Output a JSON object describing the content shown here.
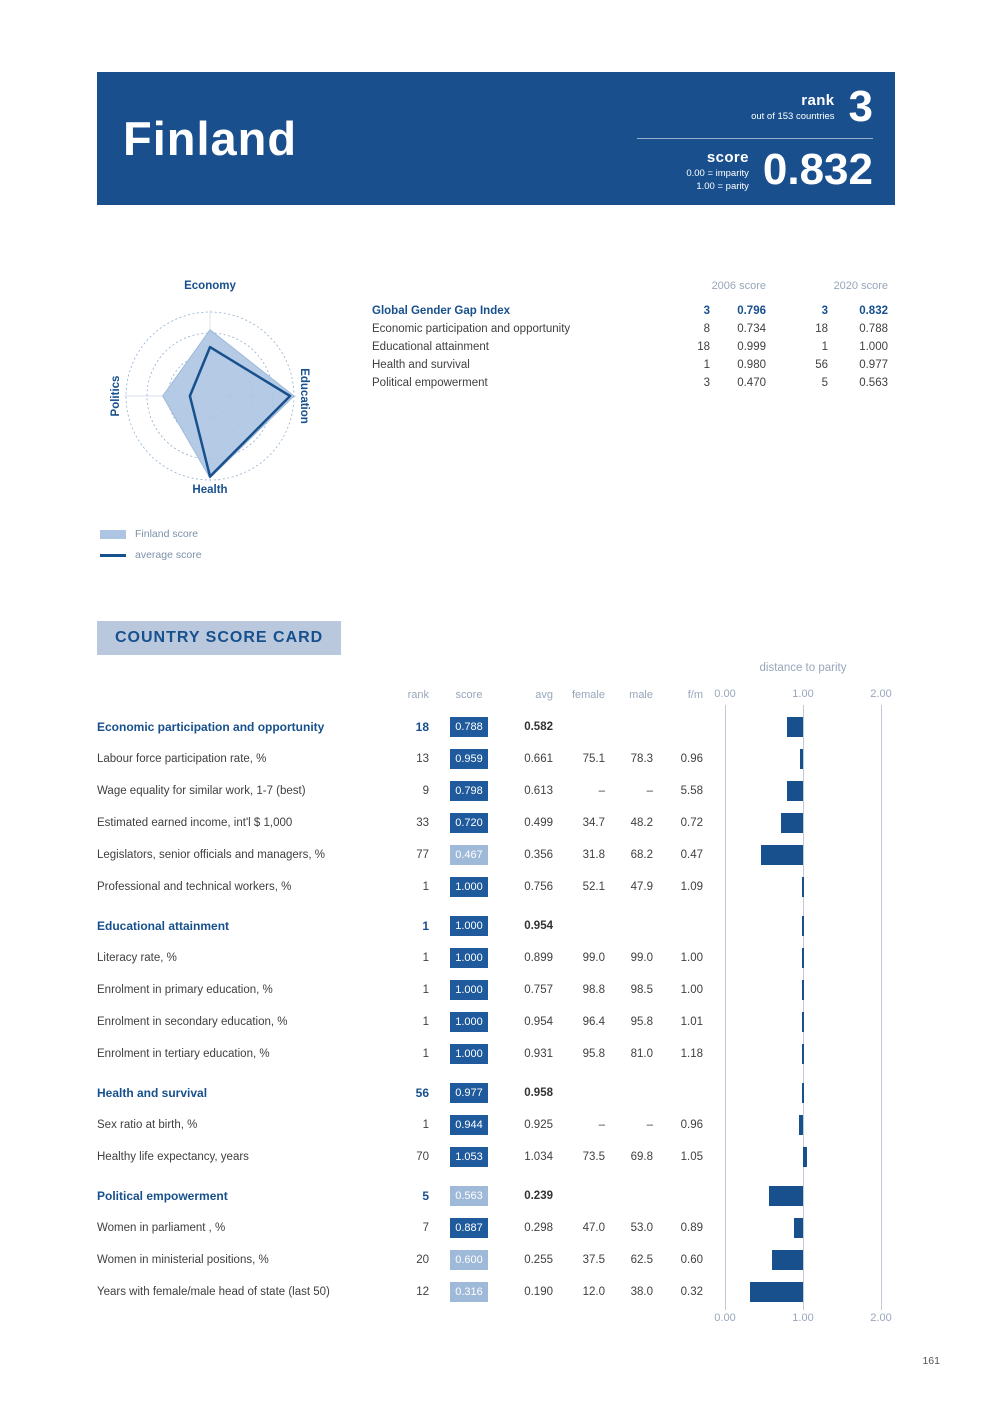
{
  "page_number": "161",
  "header": {
    "country": "Finland",
    "rank_label": "rank",
    "rank_value": "3",
    "rank_sub": "out of 153 countries",
    "score_label": "score",
    "score_sub1": "0.00 = imparity",
    "score_sub2": "1.00 = parity",
    "score_value": "0.832"
  },
  "colors": {
    "banner_blue": "#1a4f8d",
    "accent_blue": "#17508d",
    "score_box_dark": "#1e5a9c",
    "score_box_light": "#9fb9d8",
    "radar_fill": "#adc5e2",
    "muted_header": "#98a6ba",
    "scorecard_title_bg": "#b9c8dc"
  },
  "index_table": {
    "col_2006": "2006 score",
    "col_2020": "2020 score",
    "rows": [
      {
        "label": "Global Gender Gap Index",
        "bold": true,
        "rank_2006": "3",
        "score_2006": "0.796",
        "rank_2020": "3",
        "score_2020": "0.832"
      },
      {
        "label": "Economic participation and opportunity",
        "bold": false,
        "rank_2006": "8",
        "score_2006": "0.734",
        "rank_2020": "18",
        "score_2020": "0.788"
      },
      {
        "label": "Educational attainment",
        "bold": false,
        "rank_2006": "18",
        "score_2006": "0.999",
        "rank_2020": "1",
        "score_2020": "1.000"
      },
      {
        "label": "Health and survival",
        "bold": false,
        "rank_2006": "1",
        "score_2006": "0.980",
        "rank_2020": "56",
        "score_2020": "0.977"
      },
      {
        "label": "Political empowerment",
        "bold": false,
        "rank_2006": "3",
        "score_2006": "0.470",
        "rank_2020": "5",
        "score_2020": "0.563"
      }
    ]
  },
  "scorecard": {
    "title": "COUNTRY SCORE CARD",
    "chart_header": "distance to parity",
    "columns": [
      "rank",
      "score",
      "avg",
      "female",
      "male",
      "f/m"
    ],
    "axis_ticks": [
      "0.00",
      "1.00",
      "2.00"
    ],
    "rows": [
      {
        "type": "category",
        "label": "Economic participation and opportunity",
        "rank": "18",
        "score": "0.788",
        "score_num": 0.788,
        "shade": "dark",
        "avg": "0.582",
        "female": "",
        "male": "",
        "fm": ""
      },
      {
        "type": "indicator",
        "label": "Labour force participation rate, %",
        "rank": "13",
        "score": "0.959",
        "score_num": 0.959,
        "shade": "dark",
        "avg": "0.661",
        "female": "75.1",
        "male": "78.3",
        "fm": "0.96"
      },
      {
        "type": "indicator",
        "label": "Wage equality for similar work, 1-7 (best)",
        "rank": "9",
        "score": "0.798",
        "score_num": 0.798,
        "shade": "dark",
        "avg": "0.613",
        "female": "–",
        "male": "–",
        "fm": "5.58"
      },
      {
        "type": "indicator",
        "label": "Estimated earned income, int'l $ 1,000",
        "rank": "33",
        "score": "0.720",
        "score_num": 0.72,
        "shade": "dark",
        "avg": "0.499",
        "female": "34.7",
        "male": "48.2",
        "fm": "0.72"
      },
      {
        "type": "indicator",
        "label": "Legislators, senior officials and managers, %",
        "rank": "77",
        "score": "0.467",
        "score_num": 0.467,
        "shade": "light",
        "avg": "0.356",
        "female": "31.8",
        "male": "68.2",
        "fm": "0.47"
      },
      {
        "type": "indicator",
        "label": "Professional and technical workers, %",
        "rank": "1",
        "score": "1.000",
        "score_num": 1.0,
        "shade": "dark",
        "avg": "0.756",
        "female": "52.1",
        "male": "47.9",
        "fm": "1.09"
      },
      {
        "type": "category",
        "label": "Educational attainment",
        "rank": "1",
        "score": "1.000",
        "score_num": 1.0,
        "shade": "dark",
        "avg": "0.954",
        "female": "",
        "male": "",
        "fm": ""
      },
      {
        "type": "indicator",
        "label": "Literacy rate, %",
        "rank": "1",
        "score": "1.000",
        "score_num": 1.0,
        "shade": "dark",
        "avg": "0.899",
        "female": "99.0",
        "male": "99.0",
        "fm": "1.00"
      },
      {
        "type": "indicator",
        "label": "Enrolment in primary education, %",
        "rank": "1",
        "score": "1.000",
        "score_num": 1.0,
        "shade": "dark",
        "avg": "0.757",
        "female": "98.8",
        "male": "98.5",
        "fm": "1.00"
      },
      {
        "type": "indicator",
        "label": "Enrolment in secondary education, %",
        "rank": "1",
        "score": "1.000",
        "score_num": 1.0,
        "shade": "dark",
        "avg": "0.954",
        "female": "96.4",
        "male": "95.8",
        "fm": "1.01"
      },
      {
        "type": "indicator",
        "label": "Enrolment in tertiary education, %",
        "rank": "1",
        "score": "1.000",
        "score_num": 1.0,
        "shade": "dark",
        "avg": "0.931",
        "female": "95.8",
        "male": "81.0",
        "fm": "1.18"
      },
      {
        "type": "category",
        "label": "Health and survival",
        "rank": "56",
        "score": "0.977",
        "score_num": 0.977,
        "shade": "dark",
        "avg": "0.958",
        "female": "",
        "male": "",
        "fm": ""
      },
      {
        "type": "indicator",
        "label": "Sex ratio at birth, %",
        "rank": "1",
        "score": "0.944",
        "score_num": 0.944,
        "shade": "dark",
        "avg": "0.925",
        "female": "–",
        "male": "–",
        "fm": "0.96"
      },
      {
        "type": "indicator",
        "label": "Healthy life expectancy, years",
        "rank": "70",
        "score": "1.053",
        "score_num": 1.053,
        "shade": "dark",
        "avg": "1.034",
        "female": "73.5",
        "male": "69.8",
        "fm": "1.05"
      },
      {
        "type": "category",
        "label": "Political empowerment",
        "rank": "5",
        "score": "0.563",
        "score_num": 0.563,
        "shade": "light",
        "avg": "0.239",
        "female": "",
        "male": "",
        "fm": ""
      },
      {
        "type": "indicator",
        "label": "Women in parliament , %",
        "rank": "7",
        "score": "0.887",
        "score_num": 0.887,
        "shade": "dark",
        "avg": "0.298",
        "female": "47.0",
        "male": "53.0",
        "fm": "0.89"
      },
      {
        "type": "indicator",
        "label": "Women in ministerial positions, %",
        "rank": "20",
        "score": "0.600",
        "score_num": 0.6,
        "shade": "light",
        "avg": "0.255",
        "female": "37.5",
        "male": "62.5",
        "fm": "0.60"
      },
      {
        "type": "indicator",
        "label": "Years with female/male head of state (last 50)",
        "rank": "12",
        "score": "0.316",
        "score_num": 0.316,
        "shade": "light",
        "avg": "0.190",
        "female": "12.0",
        "male": "38.0",
        "fm": "0.32"
      }
    ]
  },
  "chart_data": [
    {
      "type": "radar",
      "axes": [
        "Economy",
        "Education",
        "Health",
        "Politics"
      ],
      "range": [
        0,
        1
      ],
      "series": [
        {
          "name": "Finland score",
          "values": [
            0.788,
            1.0,
            0.977,
            0.563
          ]
        },
        {
          "name": "average score",
          "values": [
            0.582,
            0.954,
            0.958,
            0.239
          ]
        }
      ]
    },
    {
      "type": "bar",
      "title": "distance to parity",
      "orientation": "horizontal",
      "anchor": 1.0,
      "xlim": [
        0,
        2
      ],
      "tick_labels": [
        "0.00",
        "1.00",
        "2.00"
      ],
      "categories": [
        "Economic participation and opportunity",
        "Labour force participation rate, %",
        "Wage equality for similar work, 1-7 (best)",
        "Estimated earned income, int'l $ 1,000",
        "Legislators, senior officials and managers, %",
        "Professional and technical workers, %",
        "Educational attainment",
        "Literacy rate, %",
        "Enrolment in primary education, %",
        "Enrolment in secondary education, %",
        "Enrolment in tertiary education, %",
        "Health and survival",
        "Sex ratio at birth, %",
        "Healthy life expectancy, years",
        "Political empowerment",
        "Women in parliament , %",
        "Women in ministerial positions, %",
        "Years with female/male head of state (last 50)"
      ],
      "values": [
        0.788,
        0.959,
        0.798,
        0.72,
        0.467,
        1.0,
        1.0,
        1.0,
        1.0,
        1.0,
        1.0,
        0.977,
        0.944,
        1.053,
        0.563,
        0.887,
        0.6,
        0.316
      ]
    }
  ]
}
